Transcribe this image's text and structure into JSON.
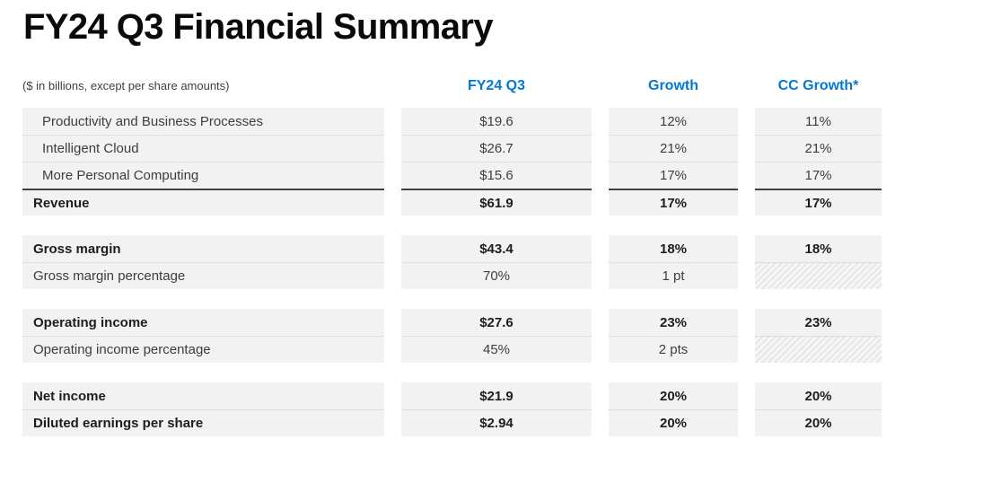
{
  "title": "FY24 Q3 Financial Summary",
  "note": "($ in billions, except per share amounts)",
  "columns": [
    "FY24 Q3",
    "Growth",
    "CC Growth*"
  ],
  "colors": {
    "accent_blue": "#0078d4",
    "row_background": "#f2f2f2",
    "sum_line": "#3f3f3f"
  },
  "chart_data": {
    "type": "table",
    "title": "FY24 Q3 Financial Summary",
    "unit_note": "($ in billions, except per share amounts)",
    "column_headers": [
      "FY24 Q3",
      "Growth",
      "CC Growth*"
    ],
    "rows": [
      {
        "label": "Productivity and Business Processes",
        "fy24_q3": "$19.6",
        "growth": "12%",
        "cc_growth": "11%"
      },
      {
        "label": "Intelligent Cloud",
        "fy24_q3": "$26.7",
        "growth": "21%",
        "cc_growth": "21%"
      },
      {
        "label": "More Personal Computing",
        "fy24_q3": "$15.6",
        "growth": "17%",
        "cc_growth": "17%"
      },
      {
        "label": "Revenue",
        "fy24_q3": "$61.9",
        "growth": "17%",
        "cc_growth": "17%"
      },
      {
        "label": "Gross margin",
        "fy24_q3": "$43.4",
        "growth": "18%",
        "cc_growth": "18%"
      },
      {
        "label": "Gross margin percentage",
        "fy24_q3": "70%",
        "growth": "1 pt",
        "cc_growth": null
      },
      {
        "label": "Operating income",
        "fy24_q3": "$27.6",
        "growth": "23%",
        "cc_growth": "23%"
      },
      {
        "label": "Operating income percentage",
        "fy24_q3": "45%",
        "growth": "2 pts",
        "cc_growth": null
      },
      {
        "label": "Net income",
        "fy24_q3": "$21.9",
        "growth": "20%",
        "cc_growth": "20%"
      },
      {
        "label": "Diluted earnings per share",
        "fy24_q3": "$2.94",
        "growth": "20%",
        "cc_growth": "20%"
      }
    ]
  },
  "table": {
    "blocks": [
      {
        "rows": [
          {
            "label": "Productivity and Business Processes",
            "values": [
              "$19.6",
              "12%",
              "11%"
            ]
          },
          {
            "label": "Intelligent Cloud",
            "values": [
              "$26.7",
              "21%",
              "21%"
            ]
          },
          {
            "label": "More Personal Computing",
            "values": [
              "$15.6",
              "17%",
              "17%"
            ]
          },
          {
            "label": "Revenue",
            "values": [
              "$61.9",
              "17%",
              "17%"
            ]
          }
        ]
      },
      {
        "rows": [
          {
            "label": "Gross margin",
            "values": [
              "$43.4",
              "18%",
              "18%"
            ]
          },
          {
            "label": "Gross margin percentage",
            "values": [
              "70%",
              "1 pt",
              null
            ]
          }
        ]
      },
      {
        "rows": [
          {
            "label": "Operating income",
            "values": [
              "$27.6",
              "23%",
              "23%"
            ]
          },
          {
            "label": "Operating income percentage",
            "values": [
              "45%",
              "2 pts",
              null
            ]
          }
        ]
      },
      {
        "rows": [
          {
            "label": "Net income",
            "values": [
              "$21.9",
              "20%",
              "20%"
            ]
          },
          {
            "label": "Diluted earnings per share",
            "values": [
              "$2.94",
              "20%",
              "20%"
            ]
          }
        ]
      }
    ]
  }
}
